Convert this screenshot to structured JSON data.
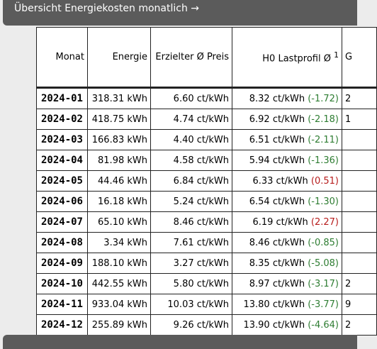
{
  "header": {
    "title": "Übersicht Energiekosten monatlich →"
  },
  "table": {
    "columns": [
      "Monat",
      "Energie",
      "Erzielter Ø Preis",
      "H0 Lastprofil Ø",
      "G"
    ],
    "footnote": "1",
    "rows": [
      {
        "monat": "2024-01",
        "energie": "318.31 kWh",
        "preis": "6.60 ct/kWh",
        "h0": "8.32 ct/kWh",
        "diff": "(-1.72)",
        "g": "2"
      },
      {
        "monat": "2024-02",
        "energie": "418.75 kWh",
        "preis": "4.74 ct/kWh",
        "h0": "6.92 ct/kWh",
        "diff": "(-2.18)",
        "g": "1"
      },
      {
        "monat": "2024-03",
        "energie": "166.83 kWh",
        "preis": "4.40 ct/kWh",
        "h0": "6.51 ct/kWh",
        "diff": "(-2.11)",
        "g": null
      },
      {
        "monat": "2024-04",
        "energie": "81.98 kWh",
        "preis": "4.58 ct/kWh",
        "h0": "5.94 ct/kWh",
        "diff": "(-1.36)",
        "g": null
      },
      {
        "monat": "2024-05",
        "energie": "44.46 kWh",
        "preis": "6.84 ct/kWh",
        "h0": "6.33 ct/kWh",
        "diff": "(0.51)",
        "g": null
      },
      {
        "monat": "2024-06",
        "energie": "16.18 kWh",
        "preis": "5.24 ct/kWh",
        "h0": "6.54 ct/kWh",
        "diff": "(-1.30)",
        "g": null
      },
      {
        "monat": "2024-07",
        "energie": "65.10 kWh",
        "preis": "8.46 ct/kWh",
        "h0": "6.19 ct/kWh",
        "diff": "(2.27)",
        "g": null
      },
      {
        "monat": "2024-08",
        "energie": "3.34 kWh",
        "preis": "7.61 ct/kWh",
        "h0": "8.46 ct/kWh",
        "diff": "(-0.85)",
        "g": null
      },
      {
        "monat": "2024-09",
        "energie": "188.10 kWh",
        "preis": "3.27 ct/kWh",
        "h0": "8.35 ct/kWh",
        "diff": "(-5.08)",
        "g": null
      },
      {
        "monat": "2024-10",
        "energie": "442.55 kWh",
        "preis": "5.80 ct/kWh",
        "h0": "8.97 ct/kWh",
        "diff": "(-3.17)",
        "g": "2"
      },
      {
        "monat": "2024-11",
        "energie": "933.04 kWh",
        "preis": "10.03 ct/kWh",
        "h0": "13.80 ct/kWh",
        "diff": "(-3.77)",
        "g": "9"
      },
      {
        "monat": "2024-12",
        "energie": "255.89 kWh",
        "preis": "9.26 ct/kWh",
        "h0": "13.90 ct/kWh",
        "diff": "(-4.64)",
        "g": "2"
      }
    ]
  }
}
